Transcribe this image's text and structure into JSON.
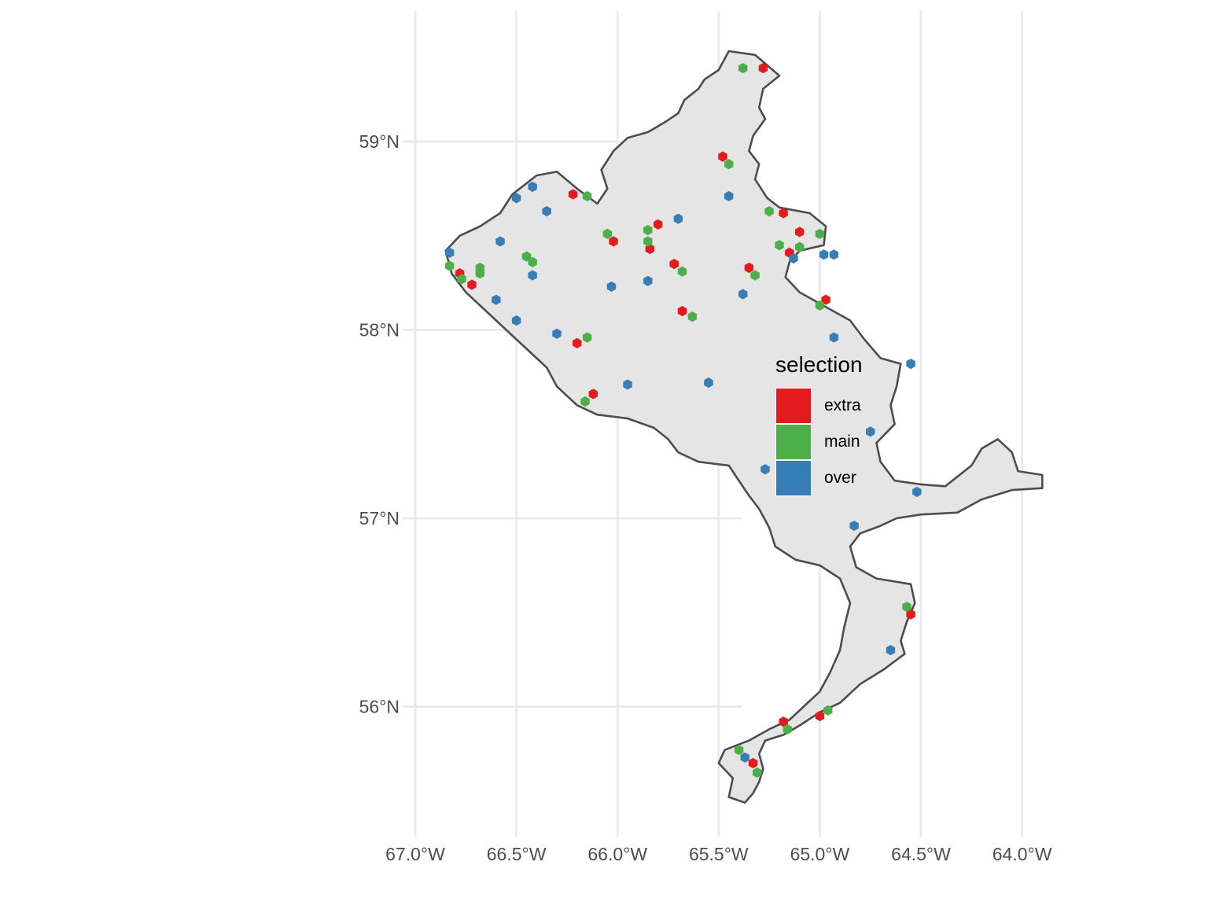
{
  "chart_data": {
    "type": "map",
    "title": "",
    "x_axis": {
      "limits_deg": [
        -67.0,
        -63.8
      ],
      "ticks": [
        {
          "value": -67.0,
          "label": "67.0°W"
        },
        {
          "value": -66.5,
          "label": "66.5°W"
        },
        {
          "value": -66.0,
          "label": "66.0°W"
        },
        {
          "value": -65.5,
          "label": "65.5°W"
        },
        {
          "value": -65.0,
          "label": "65.0°W"
        },
        {
          "value": -64.5,
          "label": "64.5°W"
        },
        {
          "value": -64.0,
          "label": "64.0°W"
        }
      ]
    },
    "y_axis": {
      "limits_deg": [
        55.45,
        59.7
      ],
      "ticks": [
        {
          "value": 56,
          "label": "56°N"
        },
        {
          "value": 57,
          "label": "57°N"
        },
        {
          "value": 58,
          "label": "58°N"
        },
        {
          "value": 59,
          "label": "59°N"
        }
      ]
    },
    "region_outline": [
      [
        -65.45,
        59.48
      ],
      [
        -65.32,
        59.46
      ],
      [
        -65.2,
        59.35
      ],
      [
        -65.28,
        59.28
      ],
      [
        -65.3,
        59.18
      ],
      [
        -65.27,
        59.12
      ],
      [
        -65.33,
        59.03
      ],
      [
        -65.35,
        58.95
      ],
      [
        -65.3,
        58.88
      ],
      [
        -65.32,
        58.8
      ],
      [
        -65.26,
        58.7
      ],
      [
        -65.2,
        58.65
      ],
      [
        -65.05,
        58.62
      ],
      [
        -64.97,
        58.55
      ],
      [
        -64.98,
        58.45
      ],
      [
        -65.1,
        58.42
      ],
      [
        -65.15,
        58.36
      ],
      [
        -65.17,
        58.28
      ],
      [
        -65.1,
        58.2
      ],
      [
        -65.0,
        58.14
      ],
      [
        -64.85,
        58.05
      ],
      [
        -64.78,
        57.95
      ],
      [
        -64.7,
        57.85
      ],
      [
        -64.6,
        57.82
      ],
      [
        -64.62,
        57.7
      ],
      [
        -64.65,
        57.6
      ],
      [
        -64.63,
        57.5
      ],
      [
        -64.72,
        57.4
      ],
      [
        -64.7,
        57.3
      ],
      [
        -64.63,
        57.2
      ],
      [
        -64.5,
        57.18
      ],
      [
        -64.38,
        57.17
      ],
      [
        -64.25,
        57.28
      ],
      [
        -64.2,
        57.37
      ],
      [
        -64.12,
        57.42
      ],
      [
        -64.05,
        57.35
      ],
      [
        -64.02,
        57.25
      ],
      [
        -63.9,
        57.23
      ],
      [
        -63.9,
        57.16
      ],
      [
        -64.05,
        57.15
      ],
      [
        -64.2,
        57.1
      ],
      [
        -64.32,
        57.03
      ],
      [
        -64.5,
        57.02
      ],
      [
        -64.62,
        57.0
      ],
      [
        -64.7,
        56.96
      ],
      [
        -64.8,
        56.92
      ],
      [
        -64.85,
        56.85
      ],
      [
        -64.82,
        56.74
      ],
      [
        -64.72,
        56.68
      ],
      [
        -64.55,
        56.65
      ],
      [
        -64.53,
        56.55
      ],
      [
        -64.57,
        56.45
      ],
      [
        -64.6,
        56.35
      ],
      [
        -64.58,
        56.28
      ],
      [
        -64.68,
        56.2
      ],
      [
        -64.8,
        56.12
      ],
      [
        -64.9,
        56.02
      ],
      [
        -65.0,
        55.97
      ],
      [
        -65.1,
        55.9
      ],
      [
        -65.18,
        55.85
      ],
      [
        -65.27,
        55.82
      ],
      [
        -65.3,
        55.75
      ],
      [
        -65.28,
        55.67
      ],
      [
        -65.3,
        55.6
      ],
      [
        -65.33,
        55.54
      ],
      [
        -65.37,
        55.49
      ],
      [
        -65.45,
        55.52
      ],
      [
        -65.43,
        55.62
      ],
      [
        -65.5,
        55.7
      ],
      [
        -65.47,
        55.77
      ],
      [
        -65.35,
        55.82
      ],
      [
        -65.25,
        55.88
      ],
      [
        -65.15,
        55.93
      ],
      [
        -65.08,
        56.0
      ],
      [
        -65.0,
        56.08
      ],
      [
        -64.95,
        56.18
      ],
      [
        -64.9,
        56.3
      ],
      [
        -64.88,
        56.42
      ],
      [
        -64.85,
        56.55
      ],
      [
        -64.9,
        56.68
      ],
      [
        -65.0,
        56.75
      ],
      [
        -65.12,
        56.78
      ],
      [
        -65.22,
        56.85
      ],
      [
        -65.25,
        56.95
      ],
      [
        -65.3,
        57.05
      ],
      [
        -65.35,
        57.12
      ],
      [
        -65.4,
        57.2
      ],
      [
        -65.45,
        57.28
      ],
      [
        -65.6,
        57.3
      ],
      [
        -65.7,
        57.35
      ],
      [
        -65.75,
        57.42
      ],
      [
        -65.82,
        57.48
      ],
      [
        -65.95,
        57.53
      ],
      [
        -66.1,
        57.55
      ],
      [
        -66.2,
        57.6
      ],
      [
        -66.3,
        57.7
      ],
      [
        -66.35,
        57.8
      ],
      [
        -66.45,
        57.9
      ],
      [
        -66.55,
        58.0
      ],
      [
        -66.65,
        58.1
      ],
      [
        -66.75,
        58.2
      ],
      [
        -66.82,
        58.3
      ],
      [
        -66.85,
        58.42
      ],
      [
        -66.78,
        58.5
      ],
      [
        -66.68,
        58.55
      ],
      [
        -66.58,
        58.62
      ],
      [
        -66.52,
        58.72
      ],
      [
        -66.4,
        58.82
      ],
      [
        -66.3,
        58.84
      ],
      [
        -66.2,
        58.75
      ],
      [
        -66.1,
        58.67
      ],
      [
        -66.05,
        58.75
      ],
      [
        -66.08,
        58.85
      ],
      [
        -66.02,
        58.95
      ],
      [
        -65.95,
        59.02
      ],
      [
        -65.85,
        59.05
      ],
      [
        -65.77,
        59.1
      ],
      [
        -65.7,
        59.15
      ],
      [
        -65.67,
        59.22
      ],
      [
        -65.6,
        59.28
      ],
      [
        -65.57,
        59.33
      ],
      [
        -65.5,
        59.38
      ]
    ],
    "series": [
      {
        "name": "extra",
        "color": "#e41a1c",
        "points": [
          [
            -65.28,
            59.39
          ],
          [
            -65.48,
            58.92
          ],
          [
            -66.22,
            58.72
          ],
          [
            -65.18,
            58.62
          ],
          [
            -65.8,
            58.56
          ],
          [
            -65.1,
            58.52
          ],
          [
            -66.02,
            58.47
          ],
          [
            -65.84,
            58.43
          ],
          [
            -65.15,
            58.41
          ],
          [
            -65.72,
            58.35
          ],
          [
            -65.35,
            58.33
          ],
          [
            -66.78,
            58.3
          ],
          [
            -66.72,
            58.24
          ],
          [
            -64.97,
            58.16
          ],
          [
            -65.68,
            58.1
          ],
          [
            -66.2,
            57.93
          ],
          [
            -66.12,
            57.66
          ],
          [
            -64.55,
            56.49
          ],
          [
            -65.18,
            55.92
          ],
          [
            -65.0,
            55.95
          ],
          [
            -65.33,
            55.7
          ]
        ]
      },
      {
        "name": "main",
        "color": "#4daf4a",
        "points": [
          [
            -65.38,
            59.39
          ],
          [
            -65.45,
            58.88
          ],
          [
            -66.15,
            58.71
          ],
          [
            -65.25,
            58.63
          ],
          [
            -66.05,
            58.51
          ],
          [
            -65.85,
            58.53
          ],
          [
            -65.0,
            58.51
          ],
          [
            -65.85,
            58.47
          ],
          [
            -65.2,
            58.45
          ],
          [
            -65.1,
            58.44
          ],
          [
            -66.45,
            58.39
          ],
          [
            -66.42,
            58.36
          ],
          [
            -66.83,
            58.34
          ],
          [
            -66.68,
            58.33
          ],
          [
            -66.68,
            58.3
          ],
          [
            -65.68,
            58.31
          ],
          [
            -65.32,
            58.29
          ],
          [
            -66.77,
            58.27
          ],
          [
            -65.0,
            58.13
          ],
          [
            -65.63,
            58.07
          ],
          [
            -66.15,
            57.96
          ],
          [
            -66.16,
            57.62
          ],
          [
            -64.57,
            56.53
          ],
          [
            -64.96,
            55.98
          ],
          [
            -65.16,
            55.88
          ],
          [
            -65.4,
            55.77
          ],
          [
            -65.31,
            55.65
          ]
        ]
      },
      {
        "name": "over",
        "color": "#377eb8",
        "points": [
          [
            -66.42,
            58.76
          ],
          [
            -66.5,
            58.7
          ],
          [
            -65.45,
            58.71
          ],
          [
            -66.35,
            58.63
          ],
          [
            -65.7,
            58.59
          ],
          [
            -66.58,
            58.47
          ],
          [
            -66.83,
            58.41
          ],
          [
            -64.98,
            58.4
          ],
          [
            -64.93,
            58.4
          ],
          [
            -65.13,
            58.38
          ],
          [
            -66.42,
            58.29
          ],
          [
            -65.85,
            58.26
          ],
          [
            -66.03,
            58.23
          ],
          [
            -65.38,
            58.19
          ],
          [
            -66.6,
            58.16
          ],
          [
            -66.5,
            58.05
          ],
          [
            -66.3,
            57.98
          ],
          [
            -64.93,
            57.96
          ],
          [
            -64.55,
            57.82
          ],
          [
            -65.55,
            57.72
          ],
          [
            -65.95,
            57.71
          ],
          [
            -64.75,
            57.46
          ],
          [
            -65.27,
            57.26
          ],
          [
            -64.52,
            57.14
          ],
          [
            -64.83,
            56.96
          ],
          [
            -64.65,
            56.3
          ],
          [
            -65.37,
            55.73
          ]
        ]
      }
    ],
    "legend": {
      "title": "selection",
      "position": "right",
      "items": [
        {
          "label": "extra",
          "color": "#e41a1c"
        },
        {
          "label": "main",
          "color": "#4daf4a"
        },
        {
          "label": "over",
          "color": "#377eb8"
        }
      ]
    }
  }
}
